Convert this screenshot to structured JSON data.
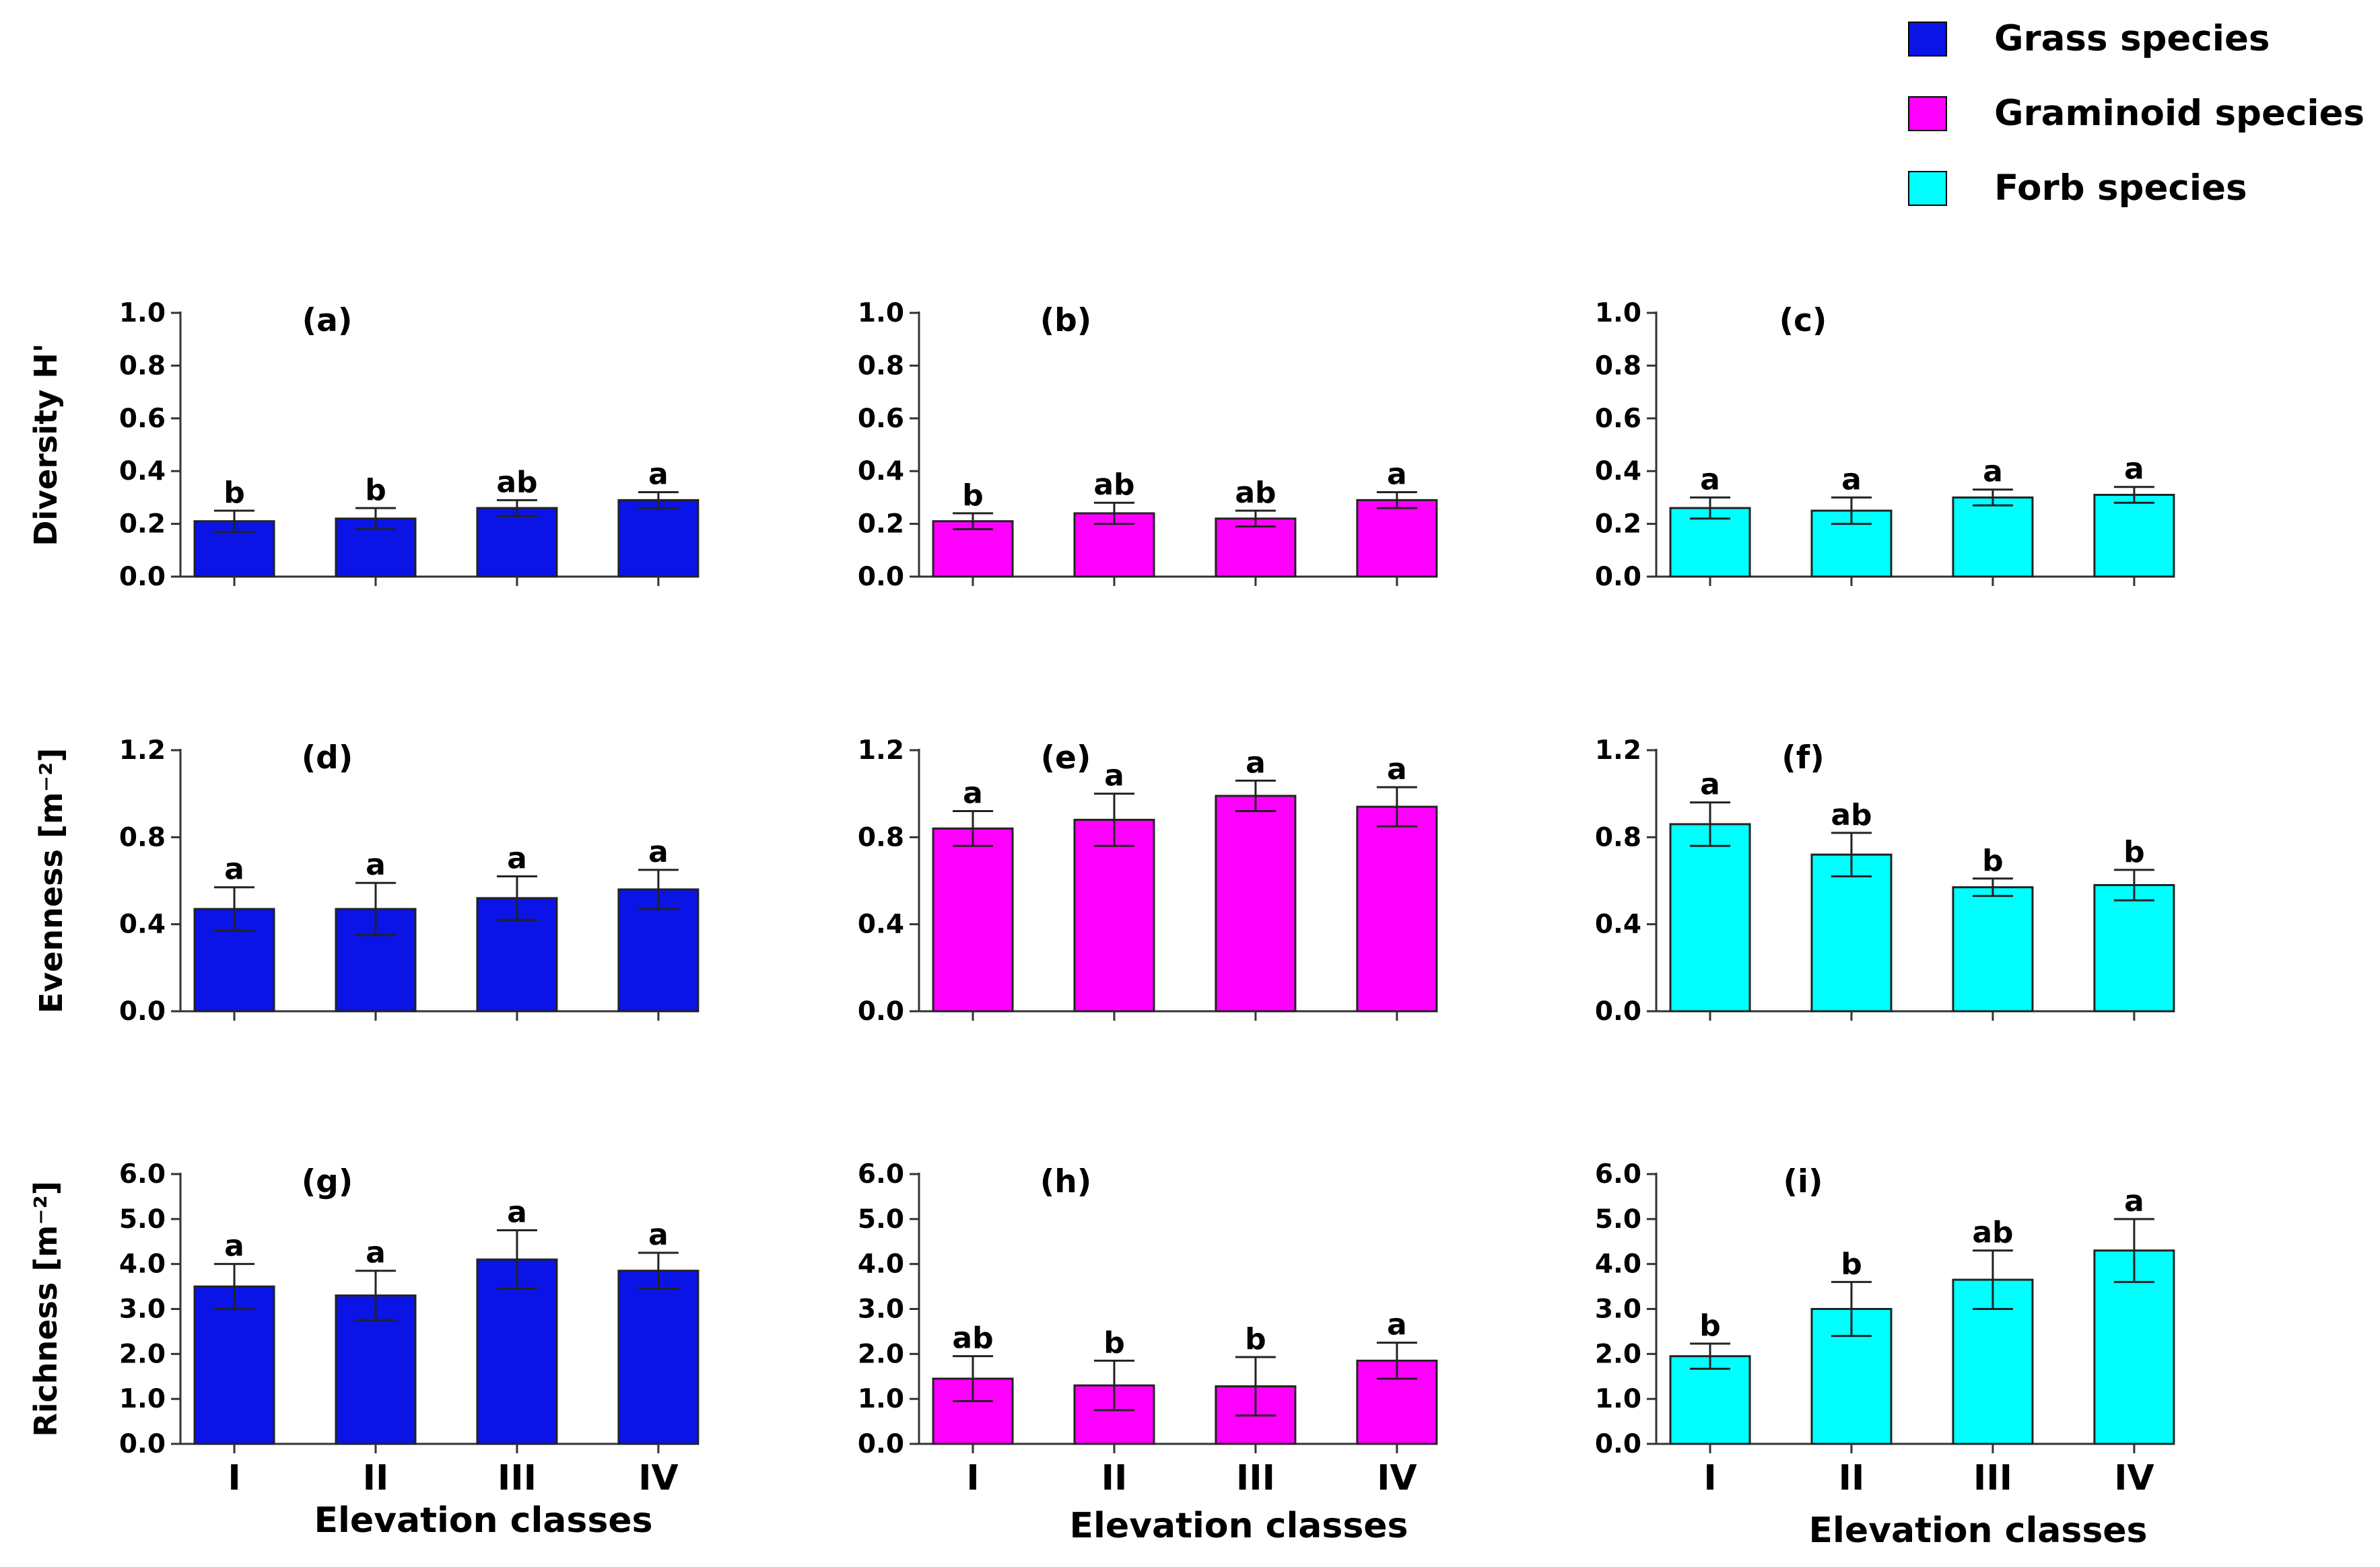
{
  "legend": [
    {
      "label": "Grass species",
      "color": "#0a14e6"
    },
    {
      "label": "Graminoid species",
      "color": "#ff00ff"
    },
    {
      "label": "Forb species",
      "color": "#00ffff"
    }
  ],
  "chart_data": [
    {
      "panel": "(a)",
      "type": "bar",
      "row": 0,
      "col": 0,
      "series": "Grass species",
      "ylabel": "Diversity H'",
      "xlabel": "",
      "categories": [
        "I",
        "II",
        "III",
        "IV"
      ],
      "values": [
        0.21,
        0.22,
        0.26,
        0.29
      ],
      "errors": [
        0.04,
        0.04,
        0.03,
        0.03
      ],
      "letters": [
        "b",
        "b",
        "ab",
        "a"
      ],
      "ylim": [
        0,
        1.0
      ],
      "yticks": [
        "0.0",
        "0.2",
        "0.4",
        "0.6",
        "0.8",
        "1.0"
      ],
      "ytick_values": [
        0,
        0.2,
        0.4,
        0.6,
        0.8,
        1.0
      ]
    },
    {
      "panel": "(b)",
      "type": "bar",
      "row": 0,
      "col": 1,
      "series": "Graminoid species",
      "ylabel": "",
      "xlabel": "",
      "categories": [
        "I",
        "II",
        "III",
        "IV"
      ],
      "values": [
        0.21,
        0.24,
        0.22,
        0.29
      ],
      "errors": [
        0.03,
        0.04,
        0.03,
        0.03
      ],
      "letters": [
        "b",
        "ab",
        "ab",
        "a"
      ],
      "ylim": [
        0,
        1.0
      ],
      "yticks": [
        "0.0",
        "0.2",
        "0.4",
        "0.6",
        "0.8",
        "1.0"
      ],
      "ytick_values": [
        0,
        0.2,
        0.4,
        0.6,
        0.8,
        1.0
      ]
    },
    {
      "panel": "(c)",
      "type": "bar",
      "row": 0,
      "col": 2,
      "series": "Forb species",
      "ylabel": "",
      "xlabel": "",
      "categories": [
        "I",
        "II",
        "III",
        "IV"
      ],
      "values": [
        0.26,
        0.25,
        0.3,
        0.31
      ],
      "errors": [
        0.04,
        0.05,
        0.03,
        0.03
      ],
      "letters": [
        "a",
        "a",
        "a",
        "a"
      ],
      "ylim": [
        0,
        1.0
      ],
      "yticks": [
        "0.0",
        "0.2",
        "0.4",
        "0.6",
        "0.8",
        "1.0"
      ],
      "ytick_values": [
        0,
        0.2,
        0.4,
        0.6,
        0.8,
        1.0
      ]
    },
    {
      "panel": "(d)",
      "type": "bar",
      "row": 1,
      "col": 0,
      "series": "Grass species",
      "ylabel": "Evenness [m⁻²]",
      "xlabel": "",
      "categories": [
        "I",
        "II",
        "III",
        "IV"
      ],
      "values": [
        0.47,
        0.47,
        0.52,
        0.56
      ],
      "errors": [
        0.1,
        0.12,
        0.1,
        0.09
      ],
      "letters": [
        "a",
        "a",
        "a",
        "a"
      ],
      "ylim": [
        0,
        1.2
      ],
      "yticks": [
        "0.0",
        "0.4",
        "0.8",
        "1.2"
      ],
      "ytick_values": [
        0,
        0.4,
        0.8,
        1.2
      ]
    },
    {
      "panel": "(e)",
      "type": "bar",
      "row": 1,
      "col": 1,
      "series": "Graminoid species",
      "ylabel": "",
      "xlabel": "",
      "categories": [
        "I",
        "II",
        "III",
        "IV"
      ],
      "values": [
        0.84,
        0.88,
        0.99,
        0.94
      ],
      "errors": [
        0.08,
        0.12,
        0.07,
        0.09
      ],
      "letters": [
        "a",
        "a",
        "a",
        "a"
      ],
      "ylim": [
        0,
        1.2
      ],
      "yticks": [
        "0.0",
        "0.4",
        "0.8",
        "1.2"
      ],
      "ytick_values": [
        0,
        0.4,
        0.8,
        1.2
      ]
    },
    {
      "panel": "(f)",
      "type": "bar",
      "row": 1,
      "col": 2,
      "series": "Forb species",
      "ylabel": "",
      "xlabel": "",
      "categories": [
        "I",
        "II",
        "III",
        "IV"
      ],
      "values": [
        0.86,
        0.72,
        0.57,
        0.58
      ],
      "errors": [
        0.1,
        0.1,
        0.04,
        0.07
      ],
      "letters": [
        "a",
        "ab",
        "b",
        "b"
      ],
      "ylim": [
        0,
        1.2
      ],
      "yticks": [
        "0.0",
        "0.4",
        "0.8",
        "1.2"
      ],
      "ytick_values": [
        0,
        0.4,
        0.8,
        1.2
      ]
    },
    {
      "panel": "(g)",
      "type": "bar",
      "row": 2,
      "col": 0,
      "series": "Grass species",
      "ylabel": "Richness [m⁻²]",
      "xlabel": "Elevation classes",
      "categories": [
        "I",
        "II",
        "III",
        "IV"
      ],
      "values": [
        3.5,
        3.3,
        4.1,
        3.85
      ],
      "errors": [
        0.5,
        0.55,
        0.65,
        0.4
      ],
      "letters": [
        "a",
        "a",
        "a",
        "a"
      ],
      "ylim": [
        0,
        6.0
      ],
      "yticks": [
        "0.0",
        "1.0",
        "2.0",
        "3.0",
        "4.0",
        "5.0",
        "6.0"
      ],
      "ytick_values": [
        0,
        1,
        2,
        3,
        4,
        5,
        6
      ]
    },
    {
      "panel": "(h)",
      "type": "bar",
      "row": 2,
      "col": 1,
      "series": "Graminoid species",
      "ylabel": "",
      "xlabel": "Elevation classes",
      "categories": [
        "I",
        "II",
        "III",
        "IV"
      ],
      "values": [
        1.45,
        1.3,
        1.28,
        1.85
      ],
      "errors": [
        0.5,
        0.55,
        0.65,
        0.4
      ],
      "letters": [
        "ab",
        "b",
        "b",
        "a"
      ],
      "ylim": [
        0,
        6.0
      ],
      "yticks": [
        "0.0",
        "1.0",
        "2.0",
        "3.0",
        "4.0",
        "5.0",
        "6.0"
      ],
      "ytick_values": [
        0,
        1,
        2,
        3,
        4,
        5,
        6
      ]
    },
    {
      "panel": "(i)",
      "type": "bar",
      "row": 2,
      "col": 2,
      "series": "Forb species",
      "ylabel": "",
      "xlabel": "Elevation classes",
      "categories": [
        "I",
        "II",
        "III",
        "IV"
      ],
      "values": [
        1.95,
        3.0,
        3.65,
        4.3
      ],
      "errors": [
        0.28,
        0.6,
        0.65,
        0.7
      ],
      "letters": [
        "b",
        "b",
        "ab",
        "a"
      ],
      "ylim": [
        0,
        6.0
      ],
      "yticks": [
        "0.0",
        "1.0",
        "2.0",
        "3.0",
        "4.0",
        "5.0",
        "6.0"
      ],
      "ytick_values": [
        0,
        1,
        2,
        3,
        4,
        5,
        6
      ]
    }
  ]
}
